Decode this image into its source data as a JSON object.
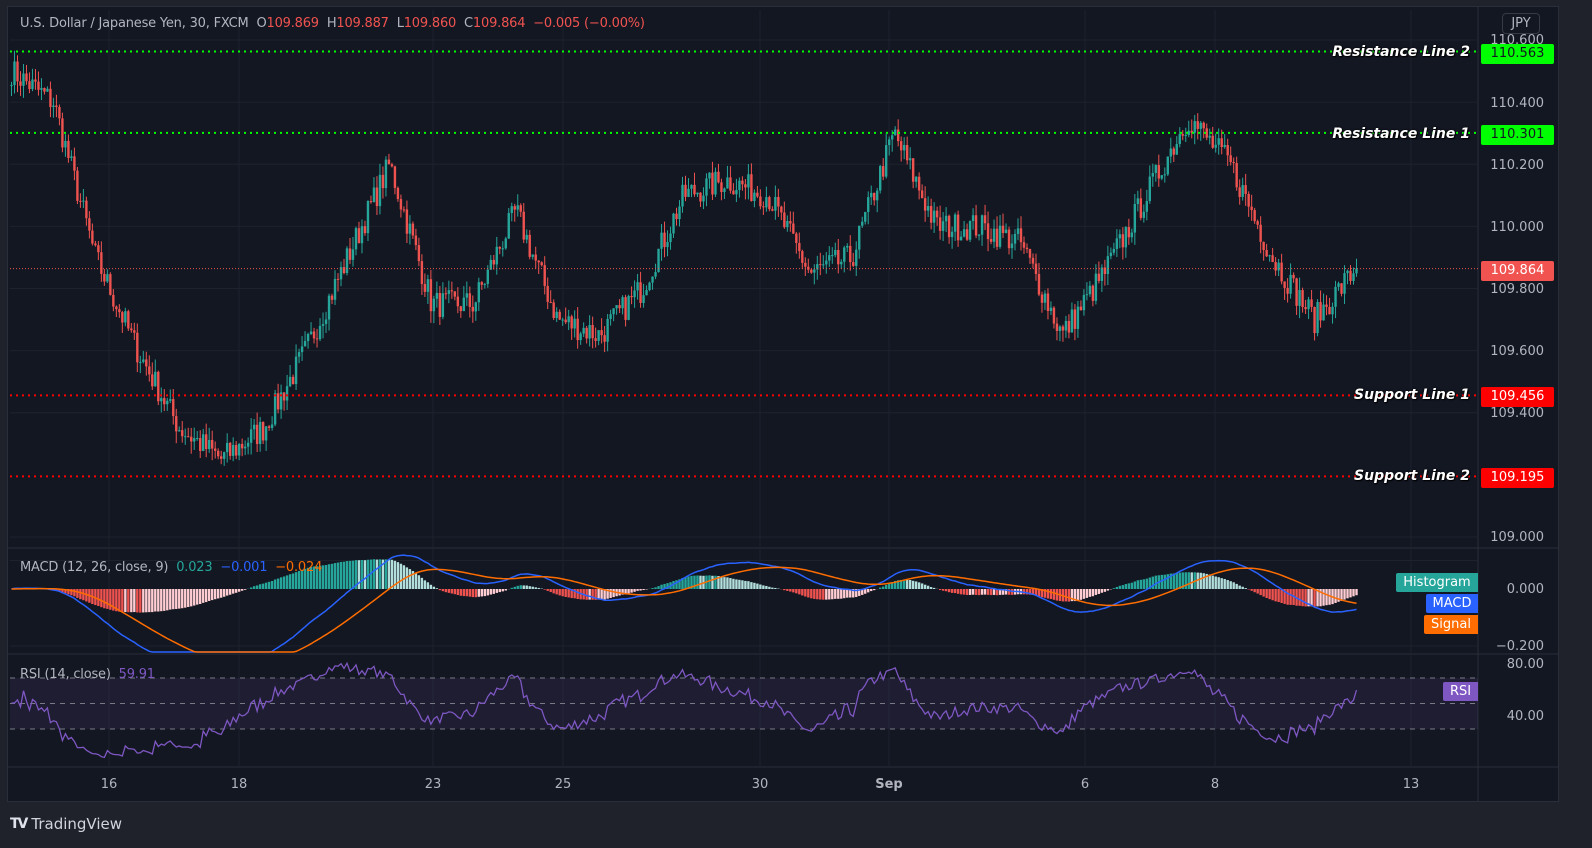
{
  "header": {
    "symbol": "U.S. Dollar / Japanese Yen, 30, FXCM",
    "o_label": "O",
    "o_value": "109.869",
    "h_label": "H",
    "h_value": "109.887",
    "l_label": "L",
    "l_value": "109.860",
    "c_label": "C",
    "c_value": "109.864",
    "change": "−0.005 (−0.00%)"
  },
  "currency_button": "JPY",
  "price_axis": {
    "ticks": [
      "110.600",
      "110.400",
      "110.200",
      "110.000",
      "109.800",
      "109.600",
      "109.400",
      "109.000"
    ]
  },
  "horizontal_lines": [
    {
      "label": "Resistance Line 2",
      "value": "110.563",
      "color": "#00ff00"
    },
    {
      "label": "Resistance Line 1",
      "value": "110.301",
      "color": "#00ff00"
    },
    {
      "label": "Support Line 1",
      "value": "109.456",
      "color": "#ff0000"
    },
    {
      "label": "Support Line 2",
      "value": "109.195",
      "color": "#ff0000"
    }
  ],
  "last_price": {
    "value": "109.864",
    "color": "#f05350"
  },
  "macd": {
    "title": "MACD (12, 26, close, 9)",
    "histogram_value": "0.023",
    "macd_value": "−0.001",
    "signal_value": "−0.024",
    "axis_ticks": [
      "0.000",
      "−0.200"
    ],
    "tags": {
      "histogram": "Histogram",
      "macd": "MACD",
      "signal": "Signal"
    },
    "colors": {
      "histogram_up": "#26a69a",
      "histogram_down": "#ef5350",
      "macd": "#2962ff",
      "signal": "#ff6d00"
    }
  },
  "rsi": {
    "title": "RSI (14, close)",
    "value": "59.91",
    "axis_ticks": [
      "80.00",
      "40.00"
    ],
    "tag": "RSI",
    "color": "#7e57c2"
  },
  "time_axis": {
    "labels": [
      "16",
      "18",
      "23",
      "25",
      "30",
      "Sep",
      "6",
      "8",
      "13"
    ]
  },
  "footer": {
    "brand": "TradingView",
    "logo": "TV"
  },
  "colors": {
    "up": "#26a69a",
    "down": "#ef5350",
    "background": "#131722",
    "grid": "#242733"
  },
  "chart_data": [
    {
      "type": "candlestick",
      "title": "U.S. Dollar / Japanese Yen, 30, FXCM",
      "xlabel": "",
      "ylabel": "JPY",
      "x_ticks": [
        "16",
        "18",
        "23",
        "25",
        "30",
        "Sep",
        "6",
        "8",
        "13"
      ],
      "ylim": [
        109.0,
        110.6
      ],
      "y_ticks": [
        109.0,
        109.4,
        109.6,
        109.8,
        110.0,
        110.2,
        110.4,
        110.6
      ],
      "ohlc_last": {
        "open": 109.869,
        "high": 109.887,
        "low": 109.86,
        "close": 109.864
      },
      "approx_close_path": [
        {
          "x": "15 (start)",
          "close": 110.5
        },
        {
          "x": "15",
          "close": 110.4
        },
        {
          "x": "15 late",
          "close": 109.9
        },
        {
          "x": "16",
          "close": 109.6
        },
        {
          "x": "16 late",
          "close": 109.35
        },
        {
          "x": "17",
          "close": 109.25
        },
        {
          "x": "17 late",
          "close": 109.35
        },
        {
          "x": "18",
          "close": 109.6
        },
        {
          "x": "19",
          "close": 109.9
        },
        {
          "x": "19 peak",
          "close": 110.2
        },
        {
          "x": "20",
          "close": 109.75
        },
        {
          "x": "22",
          "close": 109.75
        },
        {
          "x": "23",
          "close": 110.05
        },
        {
          "x": "23 late",
          "close": 109.7
        },
        {
          "x": "24",
          "close": 109.65
        },
        {
          "x": "25",
          "close": 109.8
        },
        {
          "x": "26",
          "close": 110.1
        },
        {
          "x": "27",
          "close": 110.15
        },
        {
          "x": "29",
          "close": 110.1
        },
        {
          "x": "30",
          "close": 109.85
        },
        {
          "x": "31",
          "close": 109.9
        },
        {
          "x": "Sep",
          "close": 110.3
        },
        {
          "x": "Sep 1 late",
          "close": 110.0
        },
        {
          "x": "2",
          "close": 110.0
        },
        {
          "x": "3",
          "close": 109.95
        },
        {
          "x": "6",
          "close": 109.65
        },
        {
          "x": "7",
          "close": 109.85
        },
        {
          "x": "7 late",
          "close": 110.1
        },
        {
          "x": "8",
          "close": 110.35
        },
        {
          "x": "9",
          "close": 110.2
        },
        {
          "x": "9 late",
          "close": 109.9
        },
        {
          "x": "10",
          "close": 109.7
        },
        {
          "x": "10 end",
          "close": 109.864
        }
      ],
      "horizontal_lines": [
        {
          "name": "Resistance Line 2",
          "y": 110.563
        },
        {
          "name": "Resistance Line 1",
          "y": 110.301
        },
        {
          "name": "Support Line 1",
          "y": 109.456
        },
        {
          "name": "Support Line 2",
          "y": 109.195
        }
      ],
      "grid": true
    },
    {
      "type": "line",
      "title": "MACD (12, 26, close, 9)",
      "series": [
        {
          "name": "Histogram",
          "last": 0.023
        },
        {
          "name": "MACD",
          "last": -0.001
        },
        {
          "name": "Signal",
          "last": -0.024
        }
      ],
      "ylim": [
        -0.25,
        0.1
      ],
      "y_ticks": [
        0.0,
        -0.2
      ]
    },
    {
      "type": "line",
      "title": "RSI (14, close)",
      "series": [
        {
          "name": "RSI",
          "last": 59.91
        }
      ],
      "ylim": [
        20,
        85
      ],
      "y_ticks": [
        40,
        80
      ],
      "bands": [
        30,
        50,
        70
      ]
    }
  ]
}
